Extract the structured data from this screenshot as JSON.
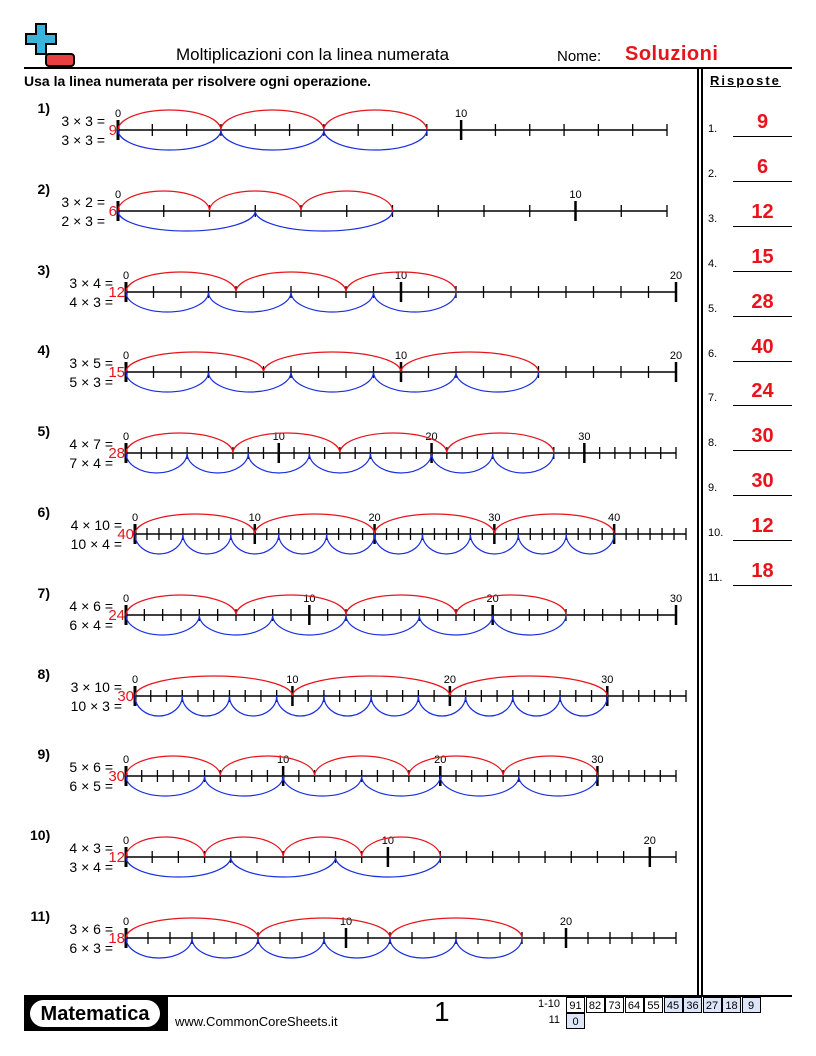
{
  "header": {
    "title": "Moltiplicazioni con la linea numerata",
    "name_label": "Nome:",
    "name_value": "Soluzioni",
    "instructions": "Usa la linea numerata per risolvere ogni operazione.",
    "answers_title": "Risposte"
  },
  "colors": {
    "accent": "#e8141c",
    "top_arcs": "#e8141c",
    "bottom_arcs": "#1a2fe0",
    "logo_blue": "#3bb4dc",
    "logo_red": "#e84040"
  },
  "problems": [
    {
      "num": "1)",
      "eq1": "3 × 3 =",
      "eq2": "3 × 3 =",
      "a": 3,
      "b": 3,
      "max": 16,
      "answer": "9"
    },
    {
      "num": "2)",
      "eq1": "3 × 2 =",
      "eq2": "2 × 3 =",
      "a": 3,
      "b": 2,
      "max": 12,
      "answer": "6"
    },
    {
      "num": "3)",
      "eq1": "3 × 4 =",
      "eq2": "4 × 3 =",
      "a": 3,
      "b": 4,
      "max": 20,
      "answer": "12"
    },
    {
      "num": "4)",
      "eq1": "3 × 5 =",
      "eq2": "5 × 3 =",
      "a": 3,
      "b": 5,
      "max": 20,
      "answer": "15"
    },
    {
      "num": "5)",
      "eq1": "4 × 7 =",
      "eq2": "7 × 4 =",
      "a": 4,
      "b": 7,
      "max": 36,
      "answer": "28"
    },
    {
      "num": "6)",
      "eq1": "4 × 10 =",
      "eq2": "10 × 4 =",
      "a": 4,
      "b": 10,
      "max": 46,
      "answer": "40"
    },
    {
      "num": "7)",
      "eq1": "4 × 6 =",
      "eq2": "6 × 4 =",
      "a": 4,
      "b": 6,
      "max": 30,
      "answer": "24"
    },
    {
      "num": "8)",
      "eq1": "3 × 10 =",
      "eq2": "10 × 3 =",
      "a": 3,
      "b": 10,
      "max": 35,
      "answer": "30"
    },
    {
      "num": "9)",
      "eq1": "5 × 6 =",
      "eq2": "6 × 5 =",
      "a": 5,
      "b": 6,
      "max": 35,
      "answer": "30"
    },
    {
      "num": "10)",
      "eq1": "4 × 3 =",
      "eq2": "3 × 4 =",
      "a": 4,
      "b": 3,
      "max": 21,
      "answer": "12"
    },
    {
      "num": "11)",
      "eq1": "3 × 6 =",
      "eq2": "6 × 3 =",
      "a": 3,
      "b": 6,
      "max": 25,
      "answer": "18"
    }
  ],
  "answers": [
    {
      "num": "1.",
      "value": "9"
    },
    {
      "num": "2.",
      "value": "6"
    },
    {
      "num": "3.",
      "value": "12"
    },
    {
      "num": "4.",
      "value": "15"
    },
    {
      "num": "5.",
      "value": "28"
    },
    {
      "num": "6.",
      "value": "40"
    },
    {
      "num": "7.",
      "value": "24"
    },
    {
      "num": "8.",
      "value": "30"
    },
    {
      "num": "9.",
      "value": "30"
    },
    {
      "num": "10.",
      "value": "12"
    },
    {
      "num": "11.",
      "value": "18"
    }
  ],
  "footer": {
    "brand": "Matematica",
    "url": "www.CommonCoreSheets.it",
    "page": "1",
    "score_rows": [
      {
        "label": "1-10",
        "cells": [
          "91",
          "82",
          "73",
          "64",
          "55",
          "45",
          "36",
          "27",
          "18",
          "9"
        ],
        "highlight_from": 5
      },
      {
        "label": "11",
        "cells": [
          "0"
        ],
        "highlight_from": 0
      }
    ]
  }
}
